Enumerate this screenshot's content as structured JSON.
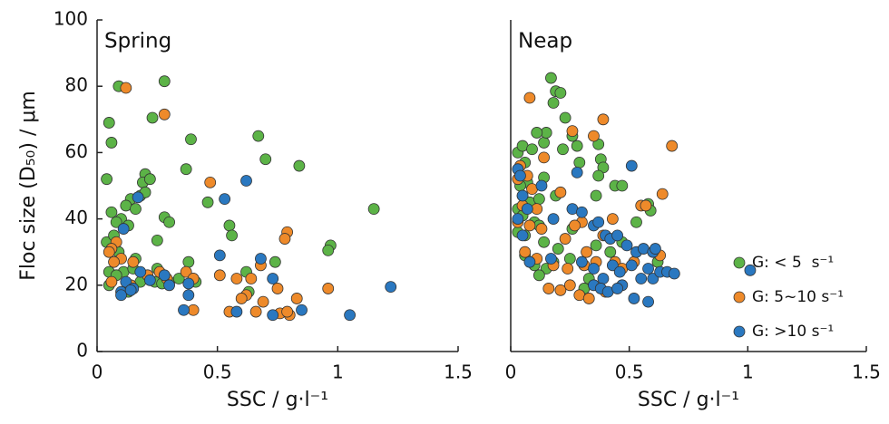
{
  "chart_data": [
    {
      "type": "scatter",
      "title": "Spring",
      "x_label": "SSC / g·l⁻¹",
      "y_label": "Floc size (D₅₀) / μm",
      "xlim": [
        0,
        1.5
      ],
      "xticks": [
        0,
        0.5,
        1,
        1.5
      ],
      "ylim": [
        0,
        100
      ],
      "yticks": [
        0,
        20,
        40,
        60,
        80,
        100
      ],
      "series": [
        {
          "color": "#5cb347",
          "x": [
            0.09,
            0.28,
            0.05,
            0.06,
            0.23,
            0.39,
            0.67,
            0.7,
            0.84,
            0.37,
            0.2,
            0.19,
            0.22,
            0.04,
            0.46,
            0.14,
            0.18,
            0.12,
            0.16,
            0.2,
            0.06,
            0.1,
            0.08,
            0.28,
            0.3,
            0.13,
            0.55,
            0.56,
            0.25,
            0.04,
            0.07,
            0.09,
            1.15,
            0.97,
            0.96,
            0.74,
            0.38,
            0.25,
            0.05,
            0.11,
            0.15,
            0.18,
            0.24,
            0.27,
            0.3,
            0.34,
            0.4,
            0.41,
            0.62,
            0.63,
            0.05,
            0.13,
            0.08,
            0.16
          ],
          "y": [
            80,
            81.5,
            69,
            63,
            70.5,
            64,
            65,
            58,
            56,
            55,
            53.5,
            51,
            52,
            52,
            45,
            46,
            47,
            44,
            43,
            48,
            42,
            40,
            39,
            40.5,
            39,
            38,
            38,
            35,
            33.5,
            33,
            35,
            30,
            43,
            32,
            30.5,
            27,
            27,
            25,
            24,
            24,
            25,
            21,
            21,
            20.5,
            21,
            22,
            22,
            21,
            24,
            18,
            20,
            18,
            23,
            28
          ]
        },
        {
          "color": "#ee8a2a",
          "x": [
            0.12,
            0.28,
            0.47,
            0.79,
            0.78,
            0.08,
            0.06,
            0.05,
            0.1,
            0.07,
            0.15,
            0.21,
            0.26,
            0.29,
            0.37,
            0.4,
            0.06,
            0.51,
            0.58,
            0.64,
            0.68,
            0.75,
            0.62,
            0.6,
            0.69,
            0.83,
            0.55,
            0.66,
            0.76,
            0.8,
            0.79,
            0.96,
            0.4,
            0.14
          ],
          "y": [
            79.5,
            71.5,
            51,
            36,
            34,
            33,
            31,
            30,
            28,
            27,
            27,
            23,
            24,
            22,
            24,
            22,
            21,
            23,
            22,
            22,
            26,
            19,
            17,
            16,
            15,
            16,
            12,
            12,
            11.5,
            11,
            12,
            19,
            12.5,
            20
          ]
        },
        {
          "color": "#2a78c0",
          "x": [
            0.17,
            0.11,
            0.53,
            0.62,
            0.18,
            0.12,
            0.15,
            0.1,
            0.1,
            0.14,
            0.22,
            0.3,
            0.38,
            0.38,
            0.51,
            0.68,
            0.73,
            0.58,
            0.73,
            0.85,
            1.05,
            1.22,
            0.36,
            0.28
          ],
          "y": [
            46.5,
            37,
            46,
            51.5,
            24,
            21,
            19,
            18,
            17,
            18.5,
            21.5,
            20,
            17,
            20.5,
            29,
            28,
            22,
            12,
            11,
            12.5,
            11,
            19.5,
            12.5,
            23
          ]
        }
      ]
    },
    {
      "type": "scatter",
      "title": "Neap",
      "x_label": "SSC / g·l⁻¹",
      "legend": "lower right",
      "xlim": [
        0,
        1.5
      ],
      "xticks": [
        0,
        0.5,
        1,
        1.5
      ],
      "ylim": [
        0,
        100
      ],
      "series": [
        {
          "name": "G: < 5  s⁻¹",
          "color": "#5cb347",
          "x": [
            0.17,
            0.19,
            0.21,
            0.23,
            0.37,
            0.26,
            0.18,
            0.03,
            0.05,
            0.09,
            0.14,
            0.15,
            0.11,
            0.22,
            0.28,
            0.38,
            0.39,
            0.29,
            0.06,
            0.07,
            0.04,
            0.14,
            0.19,
            0.37,
            0.44,
            0.47,
            0.58,
            0.59,
            0.05,
            0.08,
            0.12,
            0.03,
            0.05,
            0.1,
            0.03,
            0.06,
            0.12,
            0.14,
            0.2,
            0.26,
            0.36,
            0.53,
            0.06,
            0.1,
            0.15,
            0.18,
            0.25,
            0.33,
            0.42,
            0.12,
            0.31,
            0.47,
            0.36,
            0.62
          ],
          "y": [
            82.5,
            78.5,
            78,
            70.5,
            62.5,
            65,
            75,
            60,
            62,
            61,
            63,
            66,
            66,
            61,
            62,
            58,
            55.5,
            57,
            57,
            51,
            50,
            52.5,
            47,
            53,
            50,
            50,
            44.5,
            42.5,
            47,
            45,
            46,
            43,
            41,
            39,
            36,
            35,
            38,
            33,
            31,
            37,
            47,
            39,
            29,
            26,
            25,
            27,
            28,
            22,
            30,
            23,
            19,
            33,
            32,
            27
          ]
        },
        {
          "name": "G: 5~10 s⁻¹",
          "color": "#ee8a2a",
          "x": [
            0.08,
            0.39,
            0.35,
            0.26,
            0.68,
            0.04,
            0.07,
            0.03,
            0.14,
            0.09,
            0.21,
            0.05,
            0.11,
            0.03,
            0.08,
            0.13,
            0.3,
            0.27,
            0.43,
            0.55,
            0.64,
            0.23,
            0.39,
            0.32,
            0.06,
            0.11,
            0.18,
            0.24,
            0.31,
            0.36,
            0.44,
            0.52,
            0.63,
            0.16,
            0.21,
            0.25,
            0.29,
            0.33,
            0.4,
            0.47,
            0.57
          ],
          "y": [
            76.5,
            70,
            65,
            66.5,
            62,
            56,
            53,
            52,
            58.5,
            49,
            48,
            44,
            43,
            39,
            38,
            37,
            39,
            38,
            40,
            44,
            47.5,
            34,
            35,
            30,
            30,
            28,
            26,
            25,
            26,
            27,
            27,
            27,
            29,
            19,
            18.5,
            20,
            17,
            16,
            18,
            25,
            44
          ]
        },
        {
          "name": "G: >10 s⁻¹",
          "color": "#2a78c0",
          "x": [
            0.03,
            0.04,
            0.28,
            0.51,
            0.05,
            0.13,
            0.07,
            0.03,
            0.18,
            0.26,
            0.3,
            0.35,
            0.37,
            0.4,
            0.42,
            0.45,
            0.49,
            0.53,
            0.56,
            0.6,
            0.61,
            0.05,
            0.08,
            0.17,
            0.3,
            0.35,
            0.39,
            0.43,
            0.46,
            0.51,
            0.55,
            0.58,
            0.6,
            0.63,
            0.66,
            0.69,
            0.35,
            0.38,
            0.41,
            0.47,
            0.52,
            0.58,
            1.01,
            0.45
          ],
          "y": [
            55,
            53,
            54,
            56,
            47,
            50,
            43,
            40,
            40,
            43,
            42,
            38,
            39,
            35,
            34,
            35,
            32,
            30,
            31,
            30,
            31,
            35,
            27,
            28,
            27,
            25,
            22,
            26,
            24,
            26,
            22,
            25,
            22,
            24,
            24,
            23.5,
            20,
            19,
            18,
            20,
            16,
            15,
            24.5,
            19
          ]
        }
      ]
    }
  ]
}
